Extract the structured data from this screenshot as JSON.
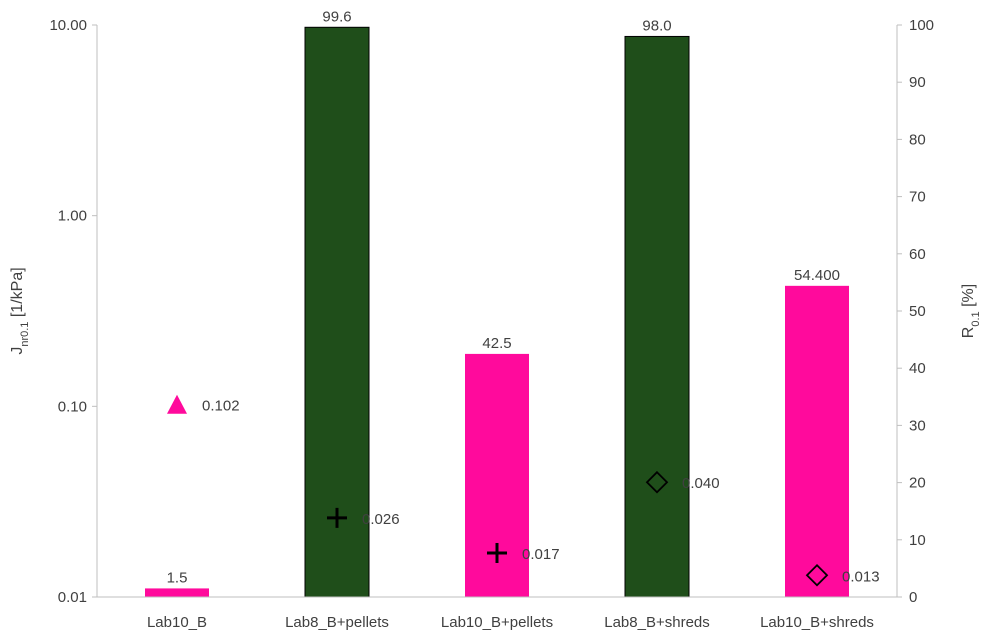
{
  "chart_data": {
    "type": "bar",
    "categories": [
      "Lab10_B",
      "Lab8_B+pellets",
      "Lab10_B+pellets",
      "Lab8_B+shreds",
      "Lab10_B+shreds"
    ],
    "bars": {
      "axis": "right",
      "values": [
        1.5,
        99.6,
        42.5,
        98.0,
        54.4
      ],
      "labels": [
        "1.5",
        "99.6",
        "42.5",
        "98.0",
        "54.400"
      ],
      "colors": [
        "#ff0a9c",
        "#1f4e1a",
        "#ff0a9c",
        "#1f4e1a",
        "#ff0a9c"
      ]
    },
    "markers": {
      "axis": "left",
      "values": [
        0.102,
        0.026,
        0.017,
        0.04,
        0.013
      ],
      "labels": [
        "0.102",
        "0.026",
        "0.017",
        "0.040",
        "0.013"
      ],
      "shapes": [
        "triangle",
        "plus",
        "plus",
        "diamond",
        "diamond"
      ],
      "colors": [
        "#ff0a9c",
        "#000000",
        "#000000",
        "#000000",
        "#000000"
      ]
    },
    "y_left": {
      "label_main": "J",
      "label_sub": "nr0.1",
      "label_unit": " [1/kPa]",
      "scale": "log",
      "ylim": [
        0.01,
        10
      ],
      "ticks": [
        0.01,
        0.1,
        1,
        10
      ],
      "tick_labels": [
        "0.01",
        "0.10",
        "1.00",
        "10.00"
      ]
    },
    "y_right": {
      "label_main": "R",
      "label_sub": "0.1",
      "label_unit": " [%]",
      "scale": "linear",
      "ylim": [
        0,
        100
      ],
      "ticks": [
        0,
        10,
        20,
        30,
        40,
        50,
        60,
        70,
        80,
        90,
        100
      ],
      "tick_labels": [
        "0",
        "10",
        "20",
        "30",
        "40",
        "50",
        "60",
        "70",
        "80",
        "90",
        "100"
      ]
    },
    "grid": false,
    "legend": "none"
  }
}
